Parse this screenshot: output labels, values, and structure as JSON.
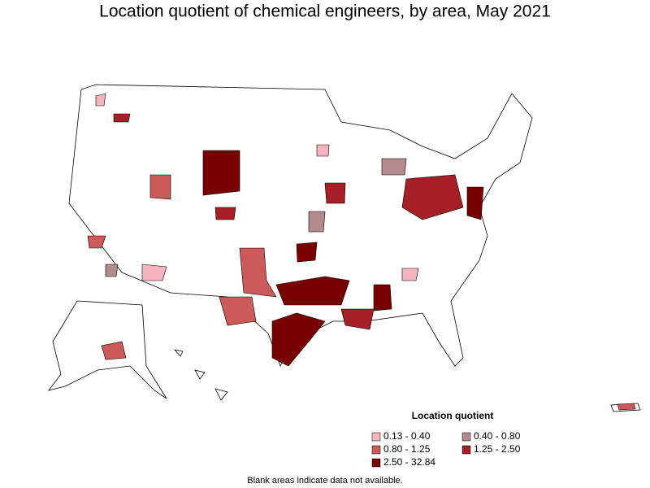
{
  "title": "Location quotient of chemical engineers, by area, May 2021",
  "legend": {
    "title": "Location quotient",
    "items": [
      {
        "label": "0.13 - 0.40",
        "color": "#f4b3bd"
      },
      {
        "label": "0.40 - 0.80",
        "color": "#b38a8e"
      },
      {
        "label": "0.80 - 1.25",
        "color": "#cd5a5a"
      },
      {
        "label": "1.25 - 2.50",
        "color": "#a41f26"
      },
      {
        "label": "2.50 - 32.84",
        "color": "#780000"
      }
    ]
  },
  "footnote": "Blank areas indicate data not available."
}
